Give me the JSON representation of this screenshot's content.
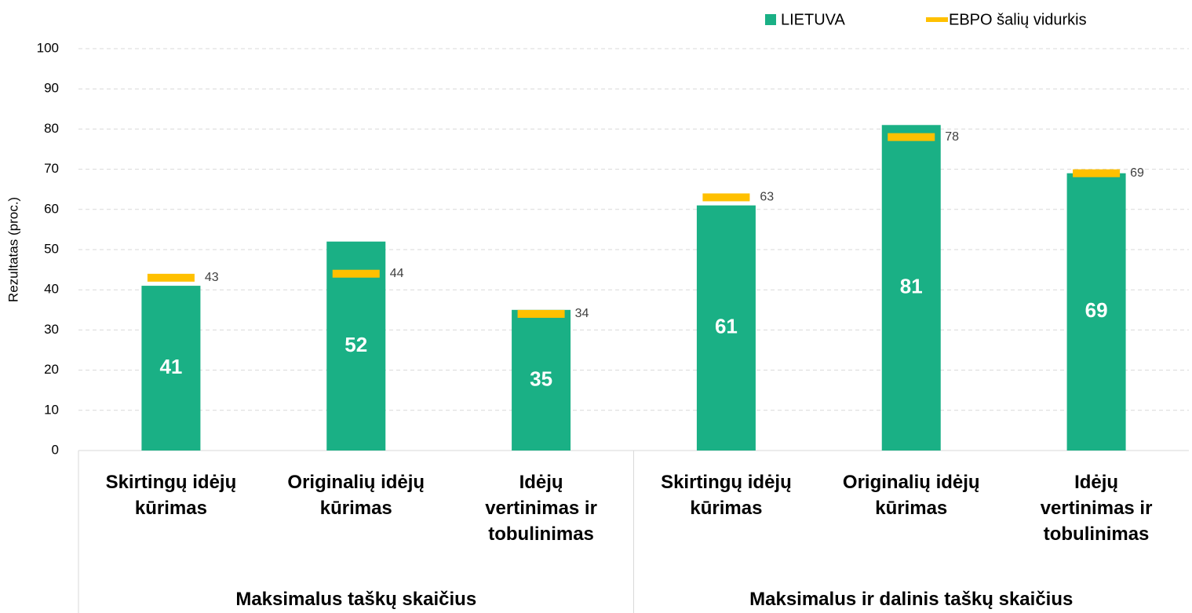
{
  "chart_data": {
    "type": "bar",
    "y_axis_label": "Rezultatas (proc.)",
    "groups": [
      {
        "name": "Maksimalus taškų skaičius",
        "categories": [
          "Skirtingų idėjų kūrimas",
          "Originalių idėjų kūrimas",
          "Idėjų vertinimas ir tobulinimas"
        ]
      },
      {
        "name": "Maksimalus ir dalinis taškų skaičius",
        "categories": [
          "Skirtingų idėjų kūrimas",
          "Originalių idėjų kūrimas",
          "Idėjų vertinimas ir tobulinimas"
        ]
      }
    ],
    "series": [
      {
        "name": "LIETUVA",
        "color": "#1ab085",
        "values": [
          41,
          52,
          35,
          61,
          81,
          69
        ]
      },
      {
        "name": "EBPO šalių vidurkis",
        "color": "#ffc000",
        "values": [
          43,
          44,
          34,
          63,
          78,
          69
        ]
      }
    ],
    "ylim": [
      0,
      100
    ],
    "yticks": [
      0,
      10,
      20,
      30,
      40,
      50,
      60,
      70,
      80,
      90,
      100
    ],
    "grid": true,
    "legend": "top-right"
  }
}
